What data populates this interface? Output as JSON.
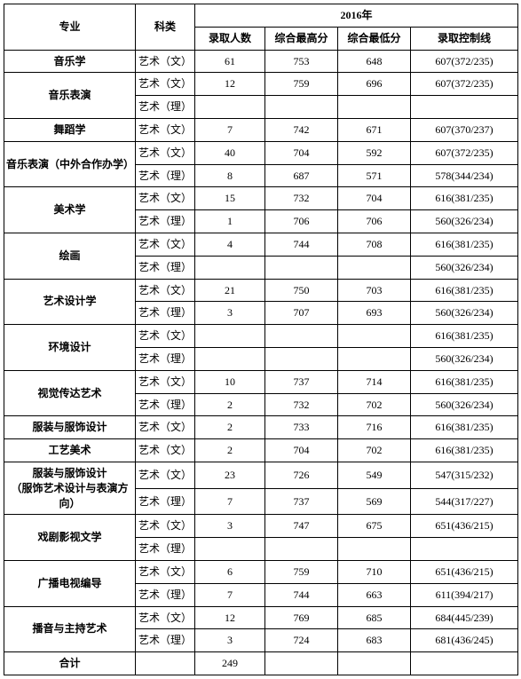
{
  "headers": {
    "major": "专业",
    "category": "科类",
    "year": "2016年",
    "enroll": "录取人数",
    "maxScore": "综合最高分",
    "minScore": "综合最低分",
    "ctrlLine": "录取控制线"
  },
  "cats": {
    "wen": "艺术（文）",
    "li": "艺术（理）"
  },
  "rows": [
    {
      "major": "音乐学",
      "span": 1,
      "sub": [
        {
          "c": "wen",
          "n": "61",
          "hi": "753",
          "lo": "648",
          "ctrl": "607(372/235)"
        }
      ]
    },
    {
      "major": "音乐表演",
      "span": 2,
      "sub": [
        {
          "c": "wen",
          "n": "12",
          "hi": "759",
          "lo": "696",
          "ctrl": "607(372/235)"
        },
        {
          "c": "li",
          "n": "",
          "hi": "",
          "lo": "",
          "ctrl": ""
        }
      ]
    },
    {
      "major": "舞蹈学",
      "span": 1,
      "sub": [
        {
          "c": "wen",
          "n": "7",
          "hi": "742",
          "lo": "671",
          "ctrl": "607(370/237)"
        }
      ]
    },
    {
      "major": "音乐表演（中外合作办学）",
      "span": 2,
      "sub": [
        {
          "c": "wen",
          "n": "40",
          "hi": "704",
          "lo": "592",
          "ctrl": "607(372/235)"
        },
        {
          "c": "li",
          "n": "8",
          "hi": "687",
          "lo": "571",
          "ctrl": "578(344/234)"
        }
      ]
    },
    {
      "major": "美术学",
      "span": 2,
      "sub": [
        {
          "c": "wen",
          "n": "15",
          "hi": "732",
          "lo": "704",
          "ctrl": "616(381/235)"
        },
        {
          "c": "li",
          "n": "1",
          "hi": "706",
          "lo": "706",
          "ctrl": "560(326/234)"
        }
      ]
    },
    {
      "major": "绘画",
      "span": 2,
      "sub": [
        {
          "c": "wen",
          "n": "4",
          "hi": "744",
          "lo": "708",
          "ctrl": "616(381/235)"
        },
        {
          "c": "li",
          "n": "",
          "hi": "",
          "lo": "",
          "ctrl": "560(326/234)"
        }
      ]
    },
    {
      "major": "艺术设计学",
      "span": 2,
      "sub": [
        {
          "c": "wen",
          "n": "21",
          "hi": "750",
          "lo": "703",
          "ctrl": "616(381/235)"
        },
        {
          "c": "li",
          "n": "3",
          "hi": "707",
          "lo": "693",
          "ctrl": "560(326/234)"
        }
      ]
    },
    {
      "major": "环境设计",
      "span": 2,
      "sub": [
        {
          "c": "wen",
          "n": "",
          "hi": "",
          "lo": "",
          "ctrl": "616(381/235)"
        },
        {
          "c": "li",
          "n": "",
          "hi": "",
          "lo": "",
          "ctrl": "560(326/234)"
        }
      ]
    },
    {
      "major": "视觉传达艺术",
      "span": 2,
      "sub": [
        {
          "c": "wen",
          "n": "10",
          "hi": "737",
          "lo": "714",
          "ctrl": "616(381/235)"
        },
        {
          "c": "li",
          "n": "2",
          "hi": "732",
          "lo": "702",
          "ctrl": "560(326/234)"
        }
      ]
    },
    {
      "major": "服装与服饰设计",
      "span": 1,
      "sub": [
        {
          "c": "wen",
          "n": "2",
          "hi": "733",
          "lo": "716",
          "ctrl": "616(381/235)"
        }
      ]
    },
    {
      "major": "工艺美术",
      "span": 1,
      "sub": [
        {
          "c": "wen",
          "n": "2",
          "hi": "704",
          "lo": "702",
          "ctrl": "616(381/235)"
        }
      ]
    },
    {
      "major": "服装与服饰设计\n（服饰艺术设计与表演方向）",
      "span": 2,
      "sub": [
        {
          "c": "wen",
          "n": "23",
          "hi": "726",
          "lo": "549",
          "ctrl": "547(315/232)"
        },
        {
          "c": "li",
          "n": "7",
          "hi": "737",
          "lo": "569",
          "ctrl": "544(317/227)"
        }
      ]
    },
    {
      "major": "戏剧影视文学",
      "span": 2,
      "sub": [
        {
          "c": "wen",
          "n": "3",
          "hi": "747",
          "lo": "675",
          "ctrl": "651(436/215)"
        },
        {
          "c": "li",
          "n": "",
          "hi": "",
          "lo": "",
          "ctrl": ""
        }
      ]
    },
    {
      "major": "广播电视编导",
      "span": 2,
      "sub": [
        {
          "c": "wen",
          "n": "6",
          "hi": "759",
          "lo": "710",
          "ctrl": "651(436/215)"
        },
        {
          "c": "li",
          "n": "7",
          "hi": "744",
          "lo": "663",
          "ctrl": "611(394/217)"
        }
      ]
    },
    {
      "major": "播音与主持艺术",
      "span": 2,
      "sub": [
        {
          "c": "wen",
          "n": "12",
          "hi": "769",
          "lo": "685",
          "ctrl": "684(445/239)"
        },
        {
          "c": "li",
          "n": "3",
          "hi": "724",
          "lo": "683",
          "ctrl": "681(436/245)"
        }
      ]
    }
  ],
  "total": {
    "label": "合计",
    "n": "249"
  }
}
